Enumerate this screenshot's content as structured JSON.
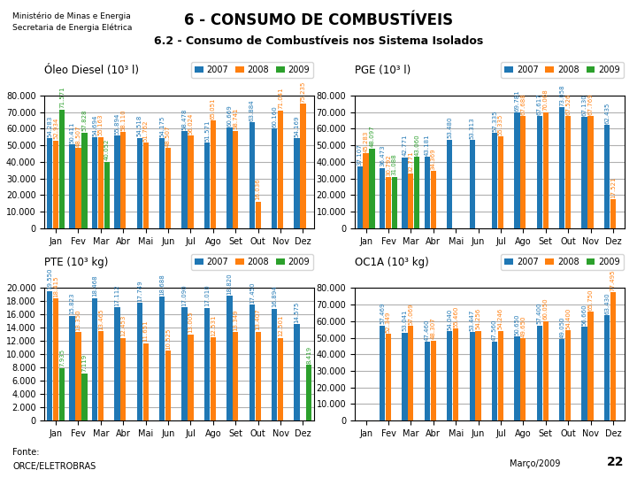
{
  "title": "6 - CONSUMO DE COMBUSTÍVEIS",
  "subtitle": "6.2 - Consumo de Combustíveis nos Sistema Isolados",
  "annotations": [
    "Ministério de Minas e Energia",
    "Secretaria de Energia Elétrica",
    "Fonte:",
    "ORCE/ELETROBRAS",
    "Março/2009",
    "22"
  ],
  "chart_data": [
    {
      "type": "bar",
      "title": "Óleo Diesel (10³ l)",
      "categories": [
        "Jan",
        "Fev",
        "Mar",
        "Abr",
        "Mai",
        "Jun",
        "Jul",
        "Ago",
        "Set",
        "Out",
        "Nov",
        "Dez"
      ],
      "series": [
        {
          "name": "2007",
          "values": [
            54283,
            50411,
            54694,
            55894,
            54518,
            54175,
            58478,
            51571,
            60669,
            63884,
            60160,
            54169
          ],
          "value_labels": [
            "54.283",
            "50.411",
            "54.694",
            "55.894",
            "54.518",
            "54.175",
            "58.478",
            "51.571",
            "60.669",
            "63.884",
            "60.160",
            "54.169"
          ]
        },
        {
          "name": "2008",
          "values": [
            52934,
            48507,
            55163,
            58110,
            51762,
            48507,
            56024,
            65051,
            58741,
            16036,
            71041,
            75235
          ],
          "value_labels": [
            "52.934",
            "48.507",
            "55.163",
            "58.110",
            "51.762",
            "48.507",
            "56.024",
            "65.051",
            "58.741",
            "16.036",
            "71.041",
            "75.235"
          ]
        },
        {
          "name": "2009",
          "values": [
            71571,
            57828,
            40052,
            null,
            null,
            null,
            null,
            null,
            null,
            null,
            null,
            null
          ],
          "value_labels": [
            "71.571",
            "57.828",
            "40.052",
            null,
            null,
            null,
            null,
            null,
            null,
            null,
            null,
            null
          ]
        }
      ],
      "ylim": [
        0,
        80000
      ],
      "yticks": [
        0,
        {
          "value": 10000,
          "label": "10.000"
        },
        {
          "value": 20000,
          "label": "20.000"
        },
        {
          "value": 30000,
          "label": "30.000"
        },
        {
          "value": 40000,
          "label": "40.000"
        },
        {
          "value": 50000,
          "label": "50.000"
        },
        {
          "value": 60000,
          "label": "60.000"
        },
        {
          "value": 70000,
          "label": "70.000"
        },
        {
          "value": 80000,
          "label": "80.000"
        }
      ],
      "grid": true,
      "legend": "upper right",
      "data_labels": true
    },
    {
      "type": "bar",
      "title": "PGE (10³ l)",
      "categories": [
        "Jan",
        "Fev",
        "Mar",
        "Abr",
        "Mai",
        "Jun",
        "Jul",
        "Ago",
        "Set",
        "Out",
        "Nov",
        "Dez"
      ],
      "series": [
        {
          "name": "2007",
          "values": [
            37107,
            36473,
            42771,
            43181,
            53480,
            53313,
            57335,
            69781,
            67617,
            73058,
            67130,
            62435
          ],
          "value_labels": [
            "37.107",
            "36.473",
            "42.771",
            "43.181",
            "53.480",
            "53.313",
            "57.335",
            "69.781",
            "67.617",
            "73.058",
            "67.130",
            "62.435"
          ]
        },
        {
          "name": "2008",
          "values": [
            45283,
            30792,
            32771,
            34369,
            null,
            null,
            55335,
            67688,
            70068,
            67526,
            67769,
            17521
          ],
          "value_labels": [
            "45.283",
            "30.792",
            "32.771",
            "34.369",
            null,
            null,
            "55.335",
            "67.688",
            "70.068",
            "67.526",
            "67.769",
            "17.521"
          ]
        },
        {
          "name": "2009",
          "values": [
            48097,
            31088,
            43060,
            null,
            null,
            null,
            null,
            null,
            null,
            null,
            null,
            null
          ],
          "value_labels": [
            "48.097",
            "31.088",
            "43.060",
            null,
            null,
            null,
            null,
            null,
            null,
            null,
            null,
            null
          ]
        }
      ],
      "ylim": [
        0,
        80000
      ],
      "yticks": [
        0,
        {
          "value": 10000,
          "label": "10.000"
        },
        {
          "value": 20000,
          "label": "20.000"
        },
        {
          "value": 30000,
          "label": "30.000"
        },
        {
          "value": 40000,
          "label": "40.000"
        },
        {
          "value": 50000,
          "label": "50.000"
        },
        {
          "value": 60000,
          "label": "60.000"
        },
        {
          "value": 70000,
          "label": "70.000"
        },
        {
          "value": 80000,
          "label": "80.000"
        }
      ],
      "grid": true,
      "legend": "upper right",
      "data_labels": true
    },
    {
      "type": "bar",
      "title": "PTE (10³ kg)",
      "categories": [
        "Jan",
        "Fev",
        "Mar",
        "Abr",
        "Mai",
        "Jun",
        "Jul",
        "Ago",
        "Set",
        "Out",
        "Nov",
        "Dez"
      ],
      "series": [
        {
          "name": "2007",
          "values": [
            19550,
            15823,
            18468,
            17112,
            17749,
            18688,
            17090,
            17010,
            18820,
            17450,
            16894,
            14575
          ],
          "value_labels": [
            "19.550",
            "15.823",
            "18.468",
            "17.112",
            "17.749",
            "18.688",
            "17.090",
            "17.010",
            "18.820",
            "17.450",
            "16.894",
            "14.575"
          ]
        },
        {
          "name": "2008",
          "values": [
            18415,
            13350,
            13465,
            12453,
            11651,
            10525,
            13005,
            12531,
            13349,
            13407,
            12501,
            null
          ],
          "value_labels": [
            "18.415",
            "13.350",
            "13.465",
            "12.453",
            "11.651",
            "10.525",
            "13.005",
            "12.531",
            "13.349",
            "13.407",
            "12.501",
            null
          ]
        },
        {
          "name": "2009",
          "values": [
            7935,
            7119,
            null,
            null,
            null,
            null,
            null,
            null,
            null,
            null,
            null,
            8419
          ],
          "value_labels": [
            "7.935",
            "7.119",
            null,
            null,
            null,
            null,
            null,
            null,
            null,
            null,
            null,
            "8.419"
          ]
        }
      ],
      "ylim": [
        0,
        20000
      ],
      "yticks": [
        0,
        {
          "value": 2000,
          "label": "2.000"
        },
        {
          "value": 4000,
          "label": "4.000"
        },
        {
          "value": 6000,
          "label": "6.000"
        },
        {
          "value": 8000,
          "label": "8.000"
        },
        {
          "value": 10000,
          "label": "10.000"
        },
        {
          "value": 12000,
          "label": "12.000"
        },
        {
          "value": 14000,
          "label": "14.000"
        },
        {
          "value": 16000,
          "label": "16.000"
        },
        {
          "value": 18000,
          "label": "18.000"
        },
        {
          "value": 20000,
          "label": "20.000"
        }
      ],
      "grid": true,
      "legend": "upper right",
      "data_labels": true
    },
    {
      "type": "bar",
      "title": "OC1A (10³ kg)",
      "categories": [
        "Jan",
        "Fev",
        "Mar",
        "Abr",
        "Mai",
        "Jun",
        "Jul",
        "Ago",
        "Set",
        "Out",
        "Nov",
        "Dez"
      ],
      "series": [
        {
          "name": "2007",
          "values": [
            null,
            57469,
            53041,
            47460,
            54040,
            53447,
            47560,
            50650,
            57400,
            49050,
            56660,
            63430
          ],
          "value_labels": [
            null,
            "57.469",
            "53.041",
            "47.460",
            "54.040",
            "53.447",
            "47.560",
            "50.650",
            "57.400",
            "49.050",
            "56.660",
            "63.430"
          ]
        },
        {
          "name": "2008",
          "values": [
            null,
            52349,
            57069,
            48307,
            55460,
            54256,
            54246,
            49650,
            60050,
            54400,
            65750,
            77495
          ],
          "value_labels": [
            null,
            "52.349",
            "57.069",
            "48.307",
            "55.460",
            "54.256",
            "54.246",
            "49.650",
            "60.050",
            "54.400",
            "65.750",
            "77.495"
          ]
        },
        {
          "name": "2009",
          "values": [
            null,
            null,
            null,
            null,
            null,
            null,
            null,
            null,
            null,
            null,
            null,
            null
          ],
          "value_labels": [
            null,
            null,
            null,
            null,
            null,
            null,
            null,
            null,
            null,
            null,
            null,
            null
          ]
        }
      ],
      "ylim": [
        0,
        80000
      ],
      "yticks": [
        0,
        {
          "value": 10000,
          "label": "10.000"
        },
        {
          "value": 20000,
          "label": "20.000"
        },
        {
          "value": 30000,
          "label": "30.000"
        },
        {
          "value": 40000,
          "label": "40.000"
        },
        {
          "value": 50000,
          "label": "50.000"
        },
        {
          "value": 60000,
          "label": "60.000"
        },
        {
          "value": 70000,
          "label": "70.000"
        },
        {
          "value": 80000,
          "label": "80.000"
        }
      ],
      "grid": true,
      "legend": "upper right",
      "data_labels": true
    }
  ]
}
